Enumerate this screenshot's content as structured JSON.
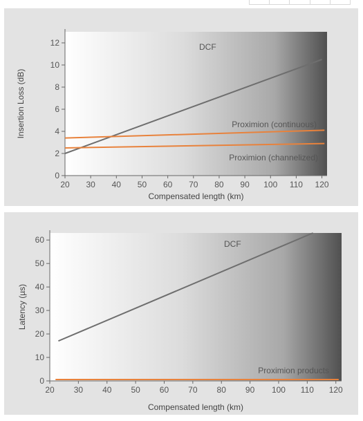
{
  "colors": {
    "panel_bg": "#e3e3e3",
    "dcf_line": "#6e6e6e",
    "proximion_line": "#e8823c",
    "axis": "#666666",
    "gradient_start": "#ffffff",
    "gradient_end": "#505050"
  },
  "chart_data": [
    {
      "type": "line",
      "xlabel": "Compensated length (km)",
      "ylabel": "Insertion Loss (dB)",
      "xlim": [
        20,
        122
      ],
      "ylim": [
        0,
        13
      ],
      "x_ticks": [
        20,
        30,
        40,
        50,
        60,
        70,
        80,
        90,
        100,
        110,
        120
      ],
      "y_ticks": [
        0,
        2,
        4,
        6,
        8,
        10,
        12
      ],
      "grid": false,
      "series": [
        {
          "name": "DCF",
          "x": [
            20,
            120
          ],
          "y": [
            2.0,
            10.5
          ],
          "color": "#6e6e6e"
        },
        {
          "name": "Proximion (continuous)",
          "x": [
            20,
            121
          ],
          "y": [
            3.4,
            4.1
          ],
          "color": "#e8823c"
        },
        {
          "name": "Proximion (channelized)",
          "x": [
            20,
            121
          ],
          "y": [
            2.5,
            2.9
          ],
          "color": "#e8823c"
        }
      ]
    },
    {
      "type": "line",
      "xlabel": "Compensated length (km)",
      "ylabel": "Latency (µs)",
      "xlim": [
        20,
        122
      ],
      "ylim": [
        0,
        63
      ],
      "x_ticks": [
        20,
        30,
        40,
        50,
        60,
        70,
        80,
        90,
        100,
        110,
        120
      ],
      "y_ticks": [
        0,
        10,
        20,
        30,
        40,
        50,
        60
      ],
      "grid": false,
      "series": [
        {
          "name": "DCF",
          "x": [
            23,
            112
          ],
          "y": [
            17,
            63
          ],
          "color": "#6e6e6e"
        },
        {
          "name": "Proximion products",
          "x": [
            22,
            121
          ],
          "y": [
            0.6,
            0.6
          ],
          "color": "#e8823c"
        }
      ]
    }
  ]
}
